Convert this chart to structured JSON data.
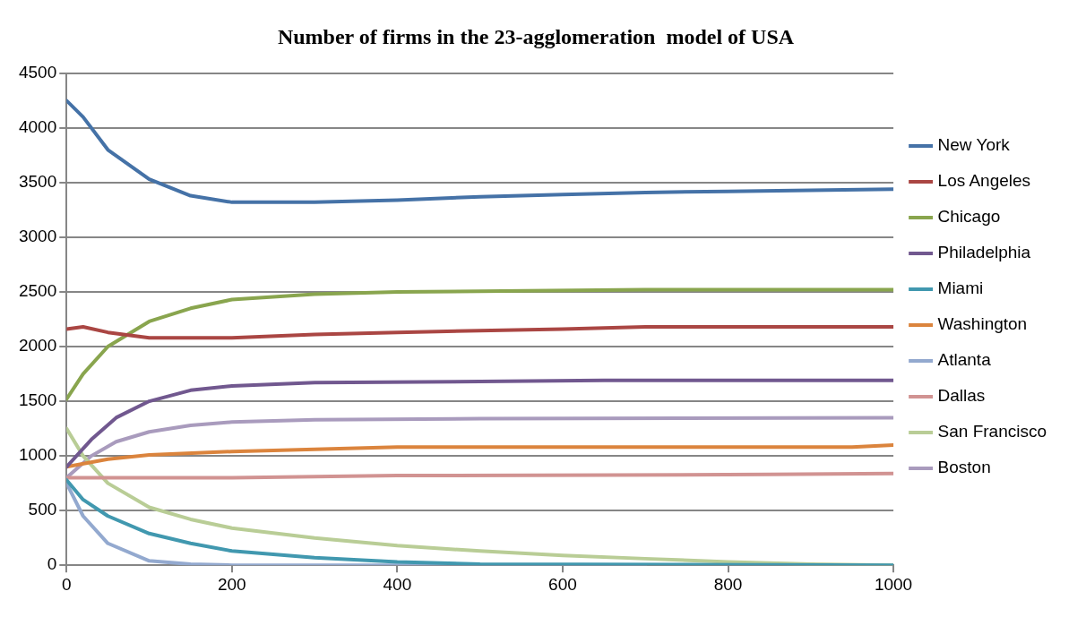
{
  "chart_data": {
    "type": "line",
    "title": "Number of firms in the 23-agglomeration  model of USA",
    "xlim": [
      0,
      1000
    ],
    "xticks": [
      0,
      200,
      400,
      600,
      800,
      1000
    ],
    "ylim": [
      0,
      4500
    ],
    "yticks": [
      0,
      500,
      1000,
      1500,
      2000,
      2500,
      3000,
      3500,
      4000,
      4500
    ],
    "grid": "y",
    "legend": "right",
    "marker": "none",
    "line_style": "solid",
    "series": [
      {
        "name": "New York",
        "color": "#4572a7",
        "x": [
          0,
          20,
          50,
          100,
          150,
          200,
          300,
          400,
          500,
          600,
          700,
          800,
          1000
        ],
        "values": [
          4250,
          4100,
          3800,
          3530,
          3380,
          3320,
          3320,
          3340,
          3370,
          3390,
          3410,
          3420,
          3440
        ]
      },
      {
        "name": "Los Angeles",
        "color": "#aa4643",
        "x": [
          0,
          20,
          50,
          100,
          200,
          300,
          400,
          600,
          700,
          1000
        ],
        "values": [
          2160,
          2180,
          2130,
          2080,
          2080,
          2110,
          2130,
          2160,
          2180,
          2180
        ]
      },
      {
        "name": "Chicago",
        "color": "#89a54e",
        "x": [
          0,
          20,
          50,
          100,
          150,
          200,
          300,
          400,
          700,
          1000
        ],
        "values": [
          1520,
          1750,
          2000,
          2230,
          2350,
          2430,
          2480,
          2500,
          2520,
          2520
        ]
      },
      {
        "name": "Philadelphia",
        "color": "#71588f",
        "x": [
          0,
          30,
          60,
          100,
          150,
          200,
          300,
          500,
          650,
          1000
        ],
        "values": [
          900,
          1150,
          1350,
          1500,
          1600,
          1640,
          1670,
          1680,
          1690,
          1690
        ]
      },
      {
        "name": "Miami",
        "color": "#4198af",
        "x": [
          0,
          20,
          50,
          100,
          150,
          200,
          300,
          400,
          500,
          1000
        ],
        "values": [
          780,
          600,
          450,
          290,
          200,
          130,
          70,
          30,
          10,
          0
        ]
      },
      {
        "name": "Washington",
        "color": "#db843d",
        "x": [
          0,
          50,
          100,
          200,
          300,
          400,
          950,
          1000
        ],
        "values": [
          900,
          970,
          1010,
          1040,
          1060,
          1080,
          1080,
          1100
        ]
      },
      {
        "name": "Atlanta",
        "color": "#93a9cf",
        "x": [
          0,
          20,
          50,
          100,
          150,
          200,
          700
        ],
        "values": [
          750,
          450,
          200,
          40,
          10,
          0,
          0
        ]
      },
      {
        "name": "Dallas",
        "color": "#d19392",
        "x": [
          0,
          200,
          300,
          400,
          850,
          1000
        ],
        "values": [
          800,
          800,
          810,
          820,
          830,
          840
        ]
      },
      {
        "name": "San Francisco",
        "color": "#b9cd96",
        "x": [
          0,
          20,
          50,
          100,
          150,
          200,
          300,
          400,
          500,
          600,
          700,
          800,
          900,
          1000
        ],
        "values": [
          1250,
          1000,
          750,
          530,
          420,
          340,
          250,
          180,
          130,
          90,
          60,
          30,
          10,
          0
        ]
      },
      {
        "name": "Boston",
        "color": "#a99bbd",
        "x": [
          0,
          30,
          60,
          100,
          150,
          200,
          300,
          500,
          1000
        ],
        "values": [
          800,
          1000,
          1130,
          1220,
          1280,
          1310,
          1330,
          1340,
          1350
        ]
      }
    ]
  }
}
